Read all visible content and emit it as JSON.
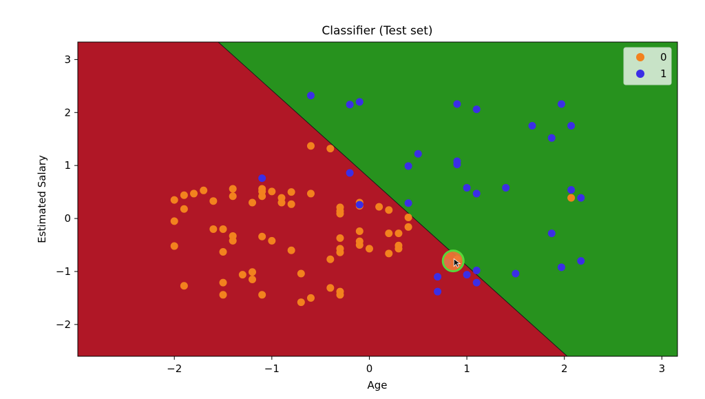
{
  "chart_data": {
    "type": "scatter",
    "title": "Classifier (Test set)",
    "xlabel": "Age",
    "ylabel": "Estimated Salary",
    "xlim": [
      -2.99,
      3.16
    ],
    "ylim": [
      -2.6,
      3.33
    ],
    "xticks": [
      -2,
      -1,
      0,
      1,
      2,
      3
    ],
    "xtick_labels": [
      "−2",
      "−1",
      "0",
      "1",
      "2",
      "3"
    ],
    "yticks": [
      -2,
      -1,
      0,
      1,
      2,
      3
    ],
    "ytick_labels": [
      "−2",
      "−1",
      "0",
      "1",
      "2",
      "3"
    ],
    "grid": false,
    "legend_position": "top-right",
    "decision_regions": {
      "boundary": [
        [
          -1.55,
          3.33
        ],
        [
          2.03,
          -2.6
        ]
      ],
      "class_0_color": "#b01726",
      "class_1_color": "#27921e"
    },
    "series": [
      {
        "name": "0",
        "color": "#f2821e",
        "points": [
          [
            -2.0,
            0.35
          ],
          [
            -1.9,
            0.44
          ],
          [
            -1.8,
            0.47
          ],
          [
            -1.7,
            0.53
          ],
          [
            -1.9,
            0.18
          ],
          [
            -1.6,
            0.33
          ],
          [
            -2.0,
            -0.05
          ],
          [
            -1.6,
            -0.2
          ],
          [
            -1.5,
            -0.2
          ],
          [
            -1.4,
            -0.33
          ],
          [
            -1.4,
            -0.42
          ],
          [
            -1.5,
            -0.63
          ],
          [
            -2.0,
            -0.52
          ],
          [
            -1.9,
            -1.27
          ],
          [
            -1.5,
            -1.21
          ],
          [
            -1.5,
            -1.44
          ],
          [
            -1.3,
            -1.06
          ],
          [
            -1.2,
            -1.01
          ],
          [
            -1.2,
            -1.15
          ],
          [
            -1.1,
            -1.44
          ],
          [
            -1.4,
            0.56
          ],
          [
            -1.4,
            0.42
          ],
          [
            -1.2,
            0.3
          ],
          [
            -1.1,
            0.56
          ],
          [
            -1.1,
            0.51
          ],
          [
            -1.1,
            0.42
          ],
          [
            -1.0,
            0.51
          ],
          [
            -0.9,
            0.39
          ],
          [
            -0.9,
            0.3
          ],
          [
            -0.8,
            0.27
          ],
          [
            -0.8,
            0.5
          ],
          [
            -0.6,
            0.47
          ],
          [
            -1.1,
            -0.34
          ],
          [
            -1.0,
            -0.42
          ],
          [
            -0.8,
            -0.6
          ],
          [
            -0.7,
            -1.04
          ],
          [
            -0.7,
            -1.58
          ],
          [
            -0.6,
            -1.5
          ],
          [
            -0.4,
            -1.31
          ],
          [
            -0.3,
            -1.38
          ],
          [
            -0.3,
            -1.44
          ],
          [
            -0.6,
            1.37
          ],
          [
            -0.4,
            1.32
          ],
          [
            -0.3,
            0.21
          ],
          [
            -0.3,
            0.14
          ],
          [
            -0.3,
            0.09
          ],
          [
            -0.1,
            0.3
          ],
          [
            -0.1,
            0.24
          ],
          [
            0.1,
            0.22
          ],
          [
            0.2,
            0.16
          ],
          [
            0.4,
            0.02
          ],
          [
            0.4,
            -0.16
          ],
          [
            -0.1,
            -0.24
          ],
          [
            -0.3,
            -0.37
          ],
          [
            -0.1,
            -0.43
          ],
          [
            -0.1,
            -0.5
          ],
          [
            0.0,
            -0.57
          ],
          [
            -0.3,
            -0.57
          ],
          [
            -0.3,
            -0.64
          ],
          [
            -0.4,
            -0.77
          ],
          [
            0.2,
            -0.28
          ],
          [
            0.3,
            -0.28
          ],
          [
            0.3,
            -0.51
          ],
          [
            0.3,
            -0.57
          ],
          [
            0.2,
            -0.66
          ],
          [
            0.9,
            -0.77
          ],
          [
            2.07,
            0.39
          ]
        ]
      },
      {
        "name": "1",
        "color": "#3b2ee6",
        "points": [
          [
            -0.6,
            2.32
          ],
          [
            -0.2,
            2.15
          ],
          [
            -0.1,
            2.2
          ],
          [
            0.9,
            2.16
          ],
          [
            1.1,
            2.06
          ],
          [
            1.97,
            2.16
          ],
          [
            1.67,
            1.75
          ],
          [
            2.07,
            1.75
          ],
          [
            1.87,
            1.52
          ],
          [
            0.5,
            1.22
          ],
          [
            0.4,
            0.99
          ],
          [
            0.9,
            1.02
          ],
          [
            0.9,
            1.08
          ],
          [
            1.0,
            0.58
          ],
          [
            1.1,
            0.47
          ],
          [
            1.4,
            0.58
          ],
          [
            2.07,
            0.54
          ],
          [
            2.17,
            0.39
          ],
          [
            -0.2,
            0.86
          ],
          [
            -0.1,
            0.26
          ],
          [
            0.4,
            0.29
          ],
          [
            -1.1,
            0.76
          ],
          [
            1.87,
            -0.28
          ],
          [
            2.17,
            -0.8
          ],
          [
            1.97,
            -0.92
          ],
          [
            1.1,
            -0.98
          ],
          [
            1.0,
            -1.06
          ],
          [
            1.1,
            -1.21
          ],
          [
            1.5,
            -1.04
          ],
          [
            0.7,
            -1.1
          ],
          [
            0.7,
            -1.38
          ],
          [
            0.8,
            -0.83
          ]
        ]
      }
    ]
  },
  "cursor": {
    "x": 0.86,
    "y": -0.8
  }
}
